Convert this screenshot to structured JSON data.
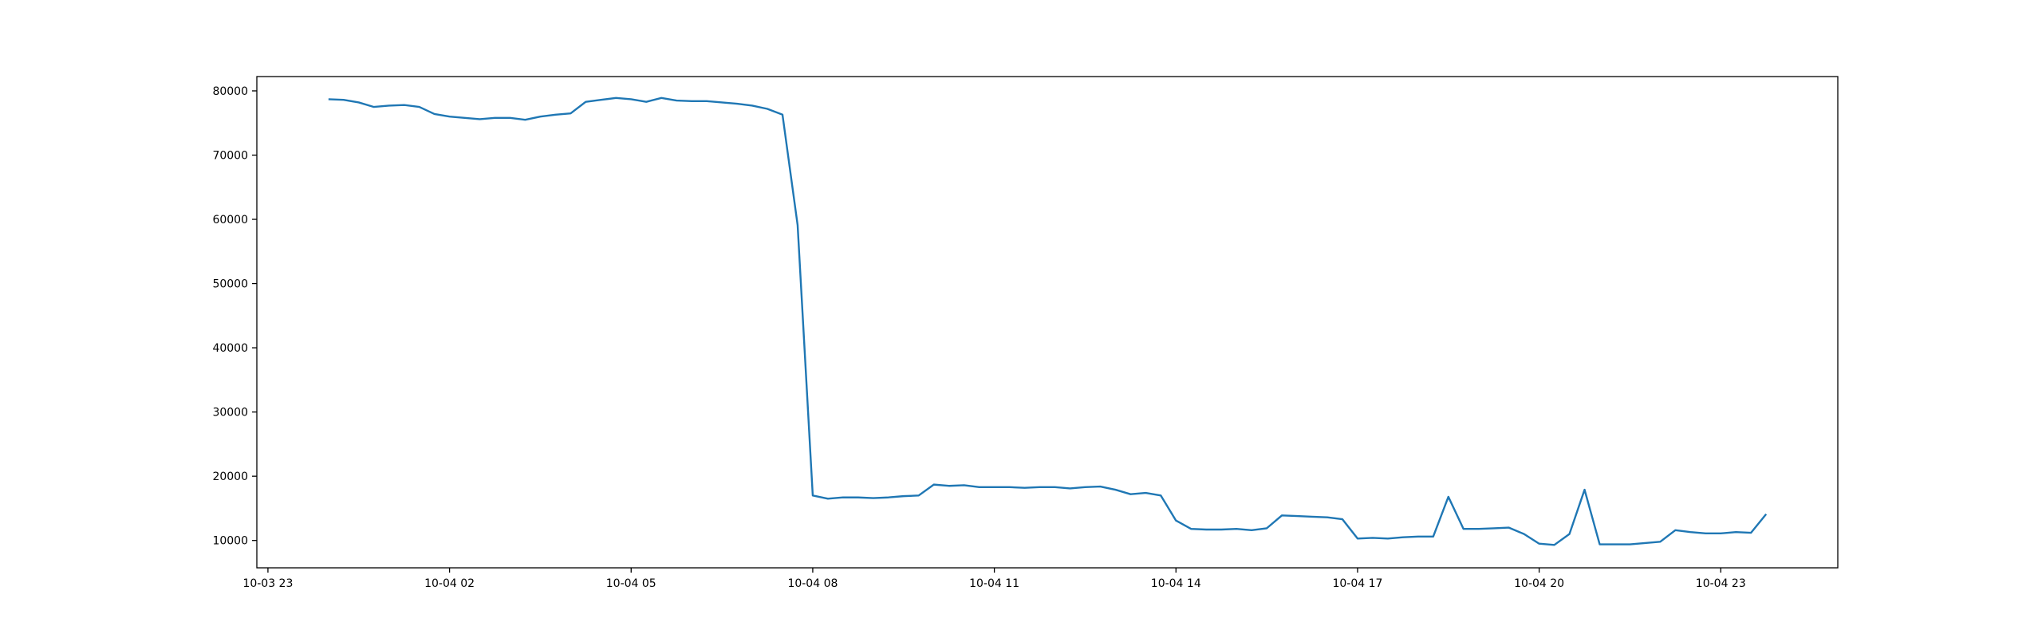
{
  "chart_data": {
    "type": "line",
    "x": [
      "10-04 00:00",
      "10-04 00:15",
      "10-04 00:30",
      "10-04 00:45",
      "10-04 01:00",
      "10-04 01:15",
      "10-04 01:30",
      "10-04 01:45",
      "10-04 02:00",
      "10-04 02:15",
      "10-04 02:30",
      "10-04 02:45",
      "10-04 03:00",
      "10-04 03:15",
      "10-04 03:30",
      "10-04 03:45",
      "10-04 04:00",
      "10-04 04:15",
      "10-04 04:30",
      "10-04 04:45",
      "10-04 05:00",
      "10-04 05:15",
      "10-04 05:30",
      "10-04 05:45",
      "10-04 06:00",
      "10-04 06:15",
      "10-04 06:30",
      "10-04 06:45",
      "10-04 07:00",
      "10-04 07:15",
      "10-04 07:30",
      "10-04 07:45",
      "10-04 08:00",
      "10-04 08:15",
      "10-04 08:30",
      "10-04 08:45",
      "10-04 09:00",
      "10-04 09:15",
      "10-04 09:30",
      "10-04 09:45",
      "10-04 10:00",
      "10-04 10:15",
      "10-04 10:30",
      "10-04 10:45",
      "10-04 11:00",
      "10-04 11:15",
      "10-04 11:30",
      "10-04 11:45",
      "10-04 12:00",
      "10-04 12:15",
      "10-04 12:30",
      "10-04 12:45",
      "10-04 13:00",
      "10-04 13:15",
      "10-04 13:30",
      "10-04 13:45",
      "10-04 14:00",
      "10-04 14:15",
      "10-04 14:30",
      "10-04 14:45",
      "10-04 15:00",
      "10-04 15:15",
      "10-04 15:30",
      "10-04 15:45",
      "10-04 16:00",
      "10-04 16:15",
      "10-04 16:30",
      "10-04 16:45",
      "10-04 17:00",
      "10-04 17:15",
      "10-04 17:30",
      "10-04 17:45",
      "10-04 18:00",
      "10-04 18:15",
      "10-04 18:30",
      "10-04 18:45",
      "10-04 19:00",
      "10-04 19:15",
      "10-04 19:30",
      "10-04 19:45",
      "10-04 20:00",
      "10-04 20:15",
      "10-04 20:30",
      "10-04 20:45",
      "10-04 21:00",
      "10-04 21:15",
      "10-04 21:30",
      "10-04 21:45",
      "10-04 22:00",
      "10-04 22:15",
      "10-04 22:30",
      "10-04 22:45",
      "10-04 23:00",
      "10-04 23:15",
      "10-04 23:30",
      "10-04 23:45"
    ],
    "series": [
      {
        "color": "#1f77b4",
        "values": [
          78700,
          78600,
          78200,
          77500,
          77700,
          77800,
          77500,
          76400,
          76000,
          75800,
          75600,
          75800,
          75800,
          75500,
          76000,
          76300,
          76500,
          78300,
          78600,
          78900,
          78700,
          78300,
          78900,
          78500,
          78400,
          78400,
          78200,
          78000,
          77700,
          77200,
          76300,
          59100,
          17000,
          16500,
          16700,
          16700,
          16600,
          16700,
          16900,
          17000,
          18700,
          18500,
          18600,
          18300,
          18300,
          18300,
          18200,
          18300,
          18300,
          18100,
          18300,
          18400,
          17900,
          17200,
          17400,
          17000,
          13100,
          11800,
          11700,
          11700,
          11800,
          11600,
          11900,
          13900,
          13800,
          13700,
          13600,
          13300,
          10300,
          10400,
          10300,
          10500,
          10600,
          10600,
          16800,
          11800,
          11800,
          11900,
          12000,
          11000,
          9500,
          9300,
          11000,
          17900,
          9400,
          9400,
          9400,
          9600,
          9800,
          11600,
          11300,
          11100,
          11100,
          11300,
          11200,
          14100
        ]
      }
    ],
    "xlim": [
      "10-03 22:49",
      "10-05 00:56"
    ],
    "xticks": [
      {
        "value": "10-03 23:00",
        "label": "10-03 23"
      },
      {
        "value": "10-04 02:00",
        "label": "10-04 02"
      },
      {
        "value": "10-04 05:00",
        "label": "10-04 05"
      },
      {
        "value": "10-04 08:00",
        "label": "10-04 08"
      },
      {
        "value": "10-04 11:00",
        "label": "10-04 11"
      },
      {
        "value": "10-04 14:00",
        "label": "10-04 14"
      },
      {
        "value": "10-04 17:00",
        "label": "10-04 17"
      },
      {
        "value": "10-04 20:00",
        "label": "10-04 20"
      },
      {
        "value": "10-04 23:00",
        "label": "10-04 23"
      }
    ],
    "ylim": [
      5740,
      82230
    ],
    "yticks": [
      10000,
      20000,
      30000,
      40000,
      50000,
      60000,
      70000,
      80000
    ]
  }
}
